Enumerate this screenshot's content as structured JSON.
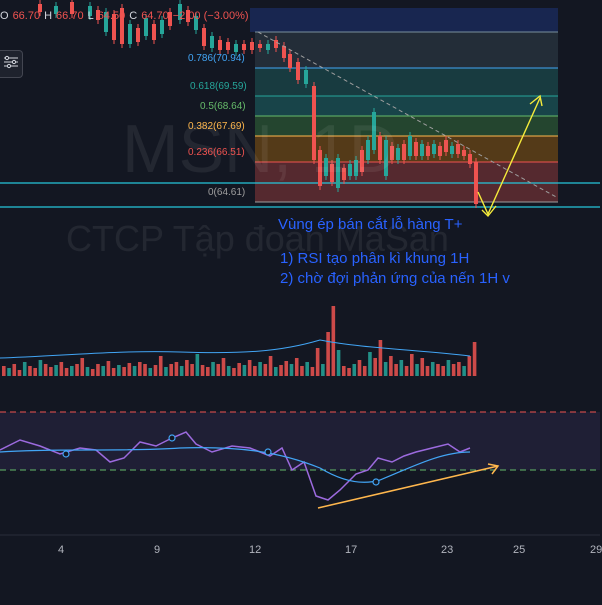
{
  "ohlc": {
    "o_key": "O",
    "o_val": "66.70",
    "h_key": "H",
    "h_val": "66.70",
    "l_key": "L",
    "l_val": "64.50",
    "c_key": "C",
    "c_val": "64.70",
    "change": "−2.00 (−3.00%)"
  },
  "watermark": {
    "symbol": "MSN, 1D",
    "company": "CTCP Tập đoàn MaSan"
  },
  "fib_levels": [
    {
      "ratio": "0.786",
      "price": "70.94",
      "label": "0.786(70.94)",
      "color": "#42a5f5"
    },
    {
      "ratio": "0.618",
      "price": "69.59",
      "label": "0.618(69.59)",
      "color": "#26a69a"
    },
    {
      "ratio": "0.5",
      "price": "68.64",
      "label": "0.5(68.64)",
      "color": "#66bb6a"
    },
    {
      "ratio": "0.382",
      "price": "67.69",
      "label": "0.382(67.69)",
      "color": "#ffb74d"
    },
    {
      "ratio": "0.236",
      "price": "66.51",
      "label": "0.236(66.51)",
      "color": "#ef5350"
    },
    {
      "ratio": "0",
      "price": "64.61",
      "label": "0(64.61)",
      "color": "#9e9e9e"
    }
  ],
  "annotation": {
    "line1": "Vùng ép bán cắt lỗ hàng T+",
    "line2": "1) RSI tạo phân kì khung 1H",
    "line3": "2) chờ đợi phản ứng của nến 1H  v"
  },
  "x_axis": {
    "ticks": [
      "4",
      "9",
      "12",
      "17",
      "23",
      "25",
      "29"
    ]
  },
  "colors": {
    "up": "#26a69a",
    "down": "#ef5350",
    "annotation": "#2962ff",
    "arrow": "#f5eb3b",
    "rsi": "#9c6ade",
    "rsi_ma": "#42a5f5",
    "hline": "#26c6da"
  },
  "icons": {
    "tools": "drawing-tools-icon"
  }
}
